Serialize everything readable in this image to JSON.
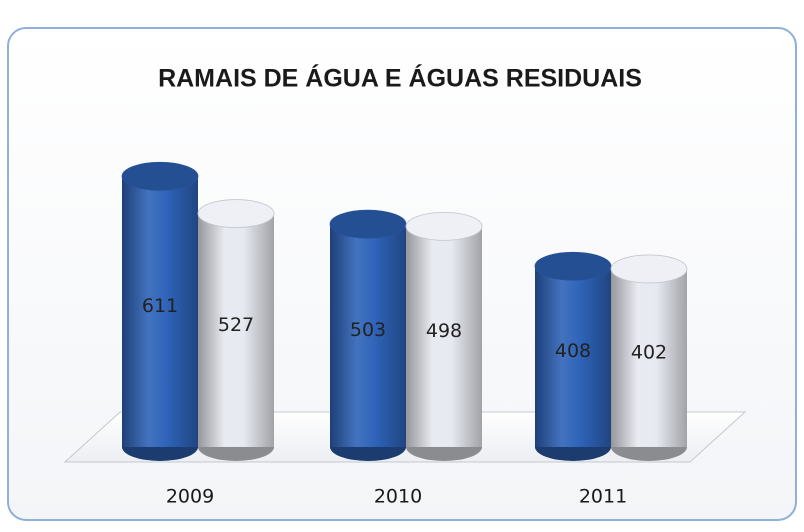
{
  "chart_data": {
    "type": "bar3d",
    "title": "RAMAIS DE ÁGUA E ÁGUAS RESIDUAIS",
    "categories": [
      "2009",
      "2010",
      "2011"
    ],
    "series": [
      {
        "color": "#2e63b8",
        "values": [
          611,
          503,
          408
        ]
      },
      {
        "color": "#e6e9f0",
        "values": [
          527,
          498,
          402
        ]
      }
    ]
  }
}
